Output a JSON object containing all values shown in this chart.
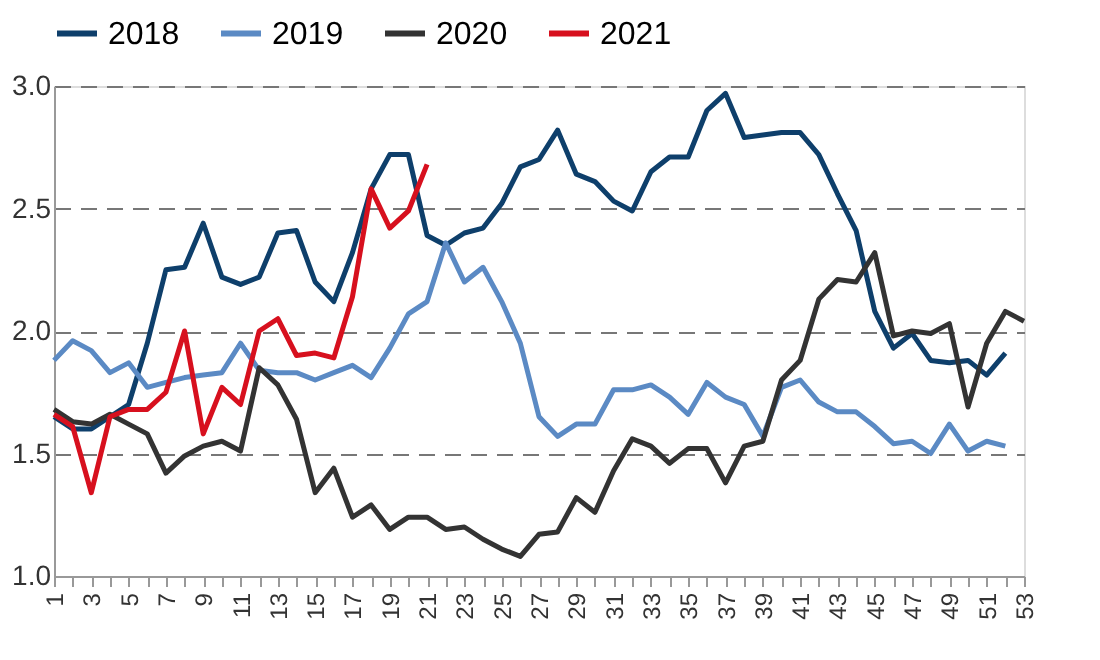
{
  "chart_data": {
    "type": "line",
    "legend": "top",
    "grid": "y",
    "line_style": "solid",
    "marker": "none",
    "x": [
      1,
      2,
      3,
      4,
      5,
      6,
      7,
      8,
      9,
      10,
      11,
      12,
      13,
      14,
      15,
      16,
      17,
      18,
      19,
      20,
      21,
      22,
      23,
      24,
      25,
      26,
      27,
      28,
      29,
      30,
      31,
      32,
      33,
      34,
      35,
      36,
      37,
      38,
      39,
      40,
      41,
      42,
      43,
      44,
      45,
      46,
      47,
      48,
      49,
      50,
      51,
      52,
      53
    ],
    "xlim": [
      1,
      53
    ],
    "xticks": [
      1,
      {
        "value": 2,
        "label": null
      },
      3,
      {
        "value": 4,
        "label": null
      },
      5,
      {
        "value": 6,
        "label": null
      },
      7,
      {
        "value": 8,
        "label": null
      },
      9,
      {
        "value": 10,
        "label": null
      },
      11,
      {
        "value": 12,
        "label": null
      },
      13,
      {
        "value": 14,
        "label": null
      },
      15,
      {
        "value": 16,
        "label": null
      },
      17,
      {
        "value": 18,
        "label": null
      },
      19,
      {
        "value": 20,
        "label": null
      },
      21,
      {
        "value": 22,
        "label": null
      },
      23,
      {
        "value": 24,
        "label": null
      },
      25,
      {
        "value": 26,
        "label": null
      },
      27,
      {
        "value": 28,
        "label": null
      },
      29,
      {
        "value": 30,
        "label": null
      },
      31,
      {
        "value": 32,
        "label": null
      },
      33,
      {
        "value": 34,
        "label": null
      },
      35,
      {
        "value": 36,
        "label": null
      },
      37,
      {
        "value": 38,
        "label": null
      },
      39,
      {
        "value": 40,
        "label": null
      },
      41,
      {
        "value": 42,
        "label": null
      },
      43,
      {
        "value": 44,
        "label": null
      },
      45,
      {
        "value": 46,
        "label": null
      },
      47,
      {
        "value": 48,
        "label": null
      },
      49,
      {
        "value": 50,
        "label": null
      },
      51,
      {
        "value": 52,
        "label": null
      },
      53
    ],
    "ylim": [
      1,
      3
    ],
    "yticks": [
      {
        "value": 1,
        "label": "1.0"
      },
      1.5,
      {
        "value": 2,
        "label": "2.0"
      },
      2.5,
      {
        "value": 3,
        "label": "3.0"
      }
    ],
    "series": [
      {
        "name": "2018",
        "color": "#0e3f6b",
        "values": [
          1.65,
          1.6,
          1.6,
          1.65,
          1.7,
          1.95,
          2.25,
          2.26,
          2.44,
          2.22,
          2.19,
          2.22,
          2.4,
          2.41,
          2.2,
          2.12,
          2.32,
          2.58,
          2.72,
          2.72,
          2.39,
          2.35,
          2.4,
          2.42,
          2.52,
          2.67,
          2.7,
          2.82,
          2.64,
          2.61,
          2.53,
          2.49,
          2.65,
          2.71,
          2.71,
          2.9,
          2.97,
          2.79,
          2.8,
          2.81,
          2.81,
          2.72,
          2.56,
          2.41,
          2.08,
          1.93,
          1.99,
          1.88,
          1.87,
          1.88,
          1.82,
          1.91,
          null
        ]
      },
      {
        "name": "2019",
        "color": "#5b8ac4",
        "values": [
          1.88,
          1.96,
          1.92,
          1.83,
          1.87,
          1.77,
          1.79,
          1.81,
          1.82,
          1.83,
          1.95,
          1.84,
          1.83,
          1.83,
          1.8,
          1.83,
          1.86,
          1.81,
          1.93,
          2.07,
          2.12,
          2.36,
          2.2,
          2.26,
          2.12,
          1.95,
          1.65,
          1.57,
          1.62,
          1.62,
          1.76,
          1.76,
          1.78,
          1.73,
          1.66,
          1.79,
          1.73,
          1.7,
          1.57,
          1.77,
          1.8,
          1.71,
          1.67,
          1.67,
          1.61,
          1.54,
          1.55,
          1.5,
          1.62,
          1.51,
          1.55,
          1.53,
          null
        ]
      },
      {
        "name": "2020",
        "color": "#333333",
        "values": [
          1.68,
          1.63,
          1.62,
          1.66,
          1.62,
          1.58,
          1.42,
          1.49,
          1.53,
          1.55,
          1.51,
          1.85,
          1.78,
          1.64,
          1.34,
          1.44,
          1.24,
          1.29,
          1.19,
          1.24,
          1.24,
          1.19,
          1.2,
          1.15,
          1.11,
          1.08,
          1.17,
          1.18,
          1.32,
          1.26,
          1.43,
          1.56,
          1.53,
          1.46,
          1.52,
          1.52,
          1.38,
          1.53,
          1.55,
          1.8,
          1.88,
          2.13,
          2.21,
          2.2,
          2.32,
          1.98,
          2.0,
          1.99,
          2.03,
          1.69,
          1.95,
          2.08,
          2.04
        ]
      },
      {
        "name": "2021",
        "color": "#d7101e",
        "values": [
          1.66,
          1.61,
          1.34,
          1.65,
          1.68,
          1.68,
          1.75,
          2.0,
          1.58,
          1.77,
          1.7,
          2.0,
          2.05,
          1.9,
          1.91,
          1.89,
          2.14,
          2.58,
          2.42,
          2.49,
          2.68,
          null,
          null,
          null,
          null,
          null,
          null,
          null,
          null,
          null,
          null,
          null,
          null,
          null,
          null,
          null,
          null,
          null,
          null,
          null,
          null,
          null,
          null,
          null,
          null,
          null,
          null,
          null,
          null,
          null,
          null,
          null,
          null
        ]
      }
    ]
  }
}
